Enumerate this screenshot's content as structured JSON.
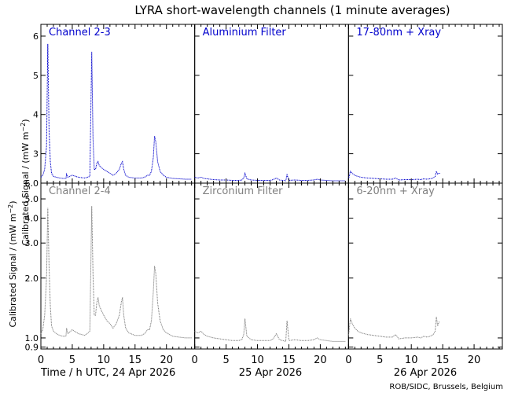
{
  "figure": {
    "title": "LYRA short-wavelength channels (1 minute averages)",
    "ylabel": "Calibrated Signal / (mW m⁻²)",
    "ylabel_main": "Calibrated Signal / (mW m",
    "ylabel_sup": "−2",
    "ylabel_close": ")",
    "xlabel_day1": "Time / h UTC, 24 Apr 2026",
    "xlabel_day2": "25 Apr 2026",
    "xlabel_day3": "26 Apr 2026",
    "credit": "ROB/SIDC, Brussels, Belgium",
    "colors": {
      "top": "#0000cc",
      "bottom": "#808080",
      "axis": "#000000"
    }
  },
  "chart_data": [
    {
      "type": "line",
      "row": "top",
      "ylim": [
        2.25,
        6.3
      ],
      "yticks": [
        3,
        4,
        5,
        6
      ],
      "ytick_labels": [
        "3",
        "4",
        "5",
        "6"
      ],
      "xlim": [
        0,
        24.5
      ],
      "series": [
        {
          "name": "Channel 2-3",
          "x": [
            0,
            0.3,
            0.6,
            0.9,
            1.1,
            1.3,
            1.5,
            1.7,
            2.0,
            2.5,
            3.0,
            3.5,
            4.0,
            4.1,
            4.3,
            5,
            6,
            7,
            7.8,
            8.1,
            8.3,
            8.5,
            8.7,
            8.9,
            9.1,
            9.3,
            9.6,
            10,
            10.5,
            11,
            11.5,
            12,
            12.5,
            12.8,
            13.0,
            13.2,
            13.5,
            14,
            15,
            16,
            16.5,
            17,
            17.3,
            17.6,
            17.9,
            18.1,
            18.3,
            18.6,
            19,
            19.5,
            20,
            21,
            22,
            23,
            24
          ],
          "y": [
            2.4,
            2.45,
            2.6,
            3.2,
            5.8,
            3.6,
            2.8,
            2.5,
            2.42,
            2.4,
            2.38,
            2.37,
            2.37,
            2.48,
            2.4,
            2.45,
            2.4,
            2.38,
            2.42,
            5.6,
            3.4,
            2.6,
            2.6,
            2.75,
            2.8,
            2.7,
            2.65,
            2.6,
            2.55,
            2.5,
            2.45,
            2.5,
            2.6,
            2.75,
            2.8,
            2.6,
            2.45,
            2.4,
            2.38,
            2.38,
            2.4,
            2.45,
            2.45,
            2.55,
            2.9,
            3.45,
            3.3,
            2.8,
            2.55,
            2.45,
            2.4,
            2.37,
            2.36,
            2.35,
            2.35
          ]
        },
        {
          "name": "Aluminium Filter",
          "x": [
            0,
            0.5,
            1,
            1.5,
            2,
            3,
            4,
            5,
            6,
            7,
            7.5,
            7.8,
            8.0,
            8.3,
            9,
            10,
            11,
            12,
            12.5,
            13,
            13.5,
            14,
            14.5,
            14.7,
            15,
            16,
            17,
            18,
            19,
            19.5,
            20,
            21,
            22,
            23,
            24
          ],
          "y": [
            2.4,
            2.38,
            2.4,
            2.37,
            2.36,
            2.34,
            2.33,
            2.33,
            2.32,
            2.32,
            2.33,
            2.38,
            2.5,
            2.36,
            2.33,
            2.32,
            2.32,
            2.32,
            2.34,
            2.38,
            2.33,
            2.32,
            2.31,
            2.46,
            2.32,
            2.33,
            2.32,
            2.32,
            2.33,
            2.35,
            2.33,
            2.32,
            2.31,
            2.31,
            2.31
          ]
        },
        {
          "name": "17-80nm + Xray",
          "x": [
            0,
            0.3,
            0.6,
            1,
            1.5,
            2,
            3,
            4,
            5,
            6,
            7,
            7.5,
            8,
            9,
            10,
            11,
            11.5,
            12,
            12.5,
            13,
            13.5,
            13.8,
            14.0,
            14.2,
            14.4,
            14.6
          ],
          "y": [
            2.35,
            2.55,
            2.5,
            2.45,
            2.42,
            2.4,
            2.38,
            2.37,
            2.36,
            2.35,
            2.35,
            2.38,
            2.33,
            2.34,
            2.34,
            2.35,
            2.34,
            2.36,
            2.35,
            2.36,
            2.38,
            2.42,
            2.55,
            2.48,
            2.5,
            2.5
          ]
        }
      ]
    },
    {
      "type": "line",
      "row": "bottom",
      "ylim": [
        0.88,
        6.0
      ],
      "yscale": "log",
      "yticks": [
        0.9,
        1.0,
        2.0,
        3.0,
        4.0,
        5.0,
        6.0
      ],
      "ytick_labels": [
        "0.9",
        "1.0",
        "2.0",
        "3.0",
        "4.0",
        "5.0",
        "6.0"
      ],
      "xlim": [
        0,
        24.5
      ],
      "xticks": [
        0,
        5,
        10,
        15,
        20
      ],
      "xtick_labels": [
        "0",
        "5",
        "10",
        "15",
        "20"
      ],
      "series": [
        {
          "name": "Channel 2-4",
          "x": [
            0,
            0.3,
            0.6,
            0.9,
            1.1,
            1.3,
            1.5,
            1.7,
            2.0,
            2.5,
            3.0,
            3.5,
            4.0,
            4.1,
            4.3,
            5,
            6,
            7,
            7.8,
            8.1,
            8.3,
            8.5,
            8.7,
            8.9,
            9.1,
            9.3,
            9.6,
            10,
            10.5,
            11,
            11.5,
            12,
            12.5,
            12.8,
            13.0,
            13.2,
            13.5,
            14,
            15,
            16,
            16.5,
            17,
            17.3,
            17.6,
            17.9,
            18.1,
            18.3,
            18.6,
            19,
            19.5,
            20,
            21,
            22,
            23,
            24
          ],
          "y": [
            1.05,
            1.1,
            1.3,
            2.0,
            4.5,
            2.3,
            1.45,
            1.15,
            1.08,
            1.05,
            1.03,
            1.02,
            1.02,
            1.12,
            1.05,
            1.1,
            1.05,
            1.03,
            1.08,
            4.6,
            2.1,
            1.3,
            1.3,
            1.5,
            1.6,
            1.45,
            1.38,
            1.3,
            1.22,
            1.18,
            1.12,
            1.18,
            1.3,
            1.5,
            1.6,
            1.3,
            1.12,
            1.06,
            1.03,
            1.03,
            1.05,
            1.1,
            1.1,
            1.22,
            1.7,
            2.3,
            2.1,
            1.5,
            1.22,
            1.1,
            1.06,
            1.02,
            1.01,
            1.0,
            1.0
          ]
        },
        {
          "name": "Zirconium Filter",
          "x": [
            0,
            0.5,
            1,
            1.5,
            2,
            3,
            4,
            5,
            6,
            7,
            7.5,
            7.8,
            8.0,
            8.3,
            9,
            10,
            11,
            12,
            12.5,
            13,
            13.5,
            14,
            14.5,
            14.7,
            15,
            16,
            17,
            18,
            19,
            19.5,
            20,
            21,
            22,
            23,
            24
          ],
          "y": [
            1.08,
            1.06,
            1.08,
            1.04,
            1.02,
            1.0,
            0.99,
            0.98,
            0.97,
            0.97,
            0.98,
            1.04,
            1.25,
            1.02,
            0.98,
            0.97,
            0.97,
            0.97,
            0.99,
            1.05,
            0.98,
            0.97,
            0.96,
            1.22,
            0.97,
            0.98,
            0.97,
            0.97,
            0.98,
            1.0,
            0.98,
            0.97,
            0.96,
            0.96,
            0.96
          ]
        },
        {
          "name": "6-20nm + Xray",
          "x": [
            0,
            0.3,
            0.6,
            1,
            1.5,
            2,
            3,
            4,
            5,
            6,
            7,
            7.5,
            8,
            9,
            10,
            11,
            11.5,
            12,
            12.5,
            13,
            13.5,
            13.8,
            14.0,
            14.2,
            14.4,
            14.6
          ],
          "y": [
            1.02,
            1.25,
            1.18,
            1.12,
            1.08,
            1.06,
            1.04,
            1.03,
            1.02,
            1.01,
            1.01,
            1.04,
            0.99,
            1.0,
            1.0,
            1.01,
            1.0,
            1.02,
            1.01,
            1.02,
            1.04,
            1.08,
            1.28,
            1.15,
            1.2,
            1.2
          ]
        }
      ]
    }
  ]
}
